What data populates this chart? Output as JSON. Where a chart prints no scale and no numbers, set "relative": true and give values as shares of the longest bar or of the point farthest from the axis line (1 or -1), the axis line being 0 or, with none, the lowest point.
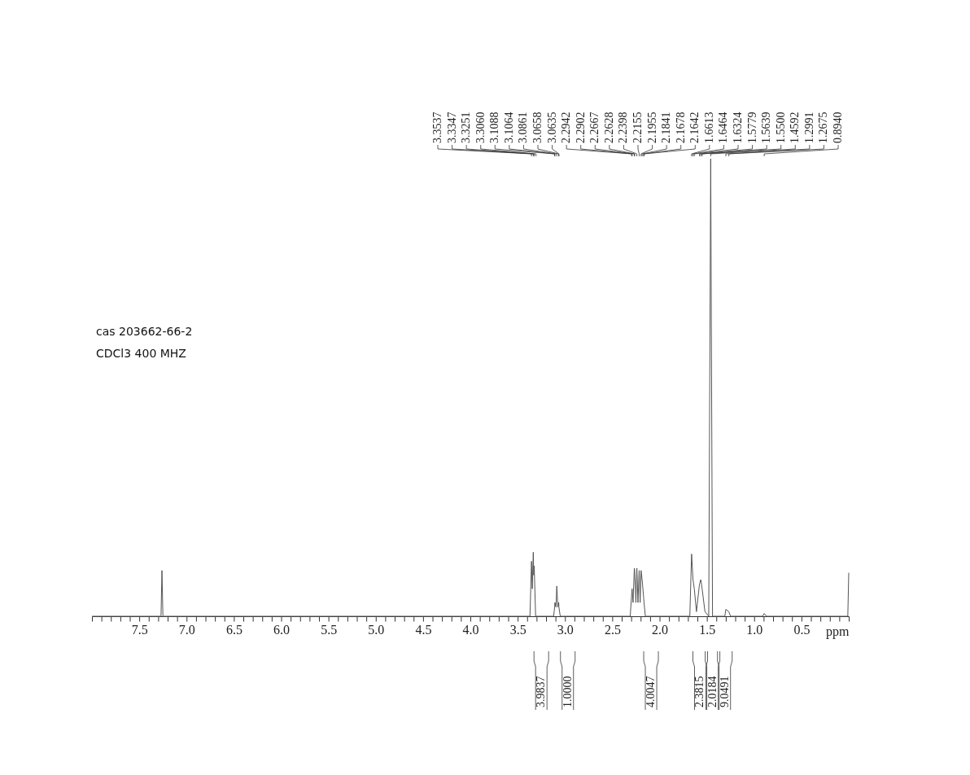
{
  "chart_data": {
    "type": "line",
    "relative": true,
    "xlabel": "ppm",
    "xlim": [
      8.0,
      0.0
    ],
    "xticks": [
      {
        "value": 8.0,
        "label": null
      },
      {
        "value": 7.9,
        "label": null
      },
      {
        "value": 7.8,
        "label": null
      },
      {
        "value": 7.7,
        "label": null
      },
      {
        "value": 7.6,
        "label": null
      },
      {
        "value": 7.5,
        "label": "7.5"
      },
      {
        "value": 7.4,
        "label": null
      },
      {
        "value": 7.3,
        "label": null
      },
      {
        "value": 7.2,
        "label": null
      },
      {
        "value": 7.1,
        "label": null
      },
      {
        "value": 7.0,
        "label": "7.0"
      },
      {
        "value": 6.9,
        "label": null
      },
      {
        "value": 6.8,
        "label": null
      },
      {
        "value": 6.7,
        "label": null
      },
      {
        "value": 6.6,
        "label": null
      },
      {
        "value": 6.5,
        "label": "6.5"
      },
      {
        "value": 6.4,
        "label": null
      },
      {
        "value": 6.3,
        "label": null
      },
      {
        "value": 6.2,
        "label": null
      },
      {
        "value": 6.1,
        "label": null
      },
      {
        "value": 6.0,
        "label": "6.0"
      },
      {
        "value": 5.9,
        "label": null
      },
      {
        "value": 5.8,
        "label": null
      },
      {
        "value": 5.7,
        "label": null
      },
      {
        "value": 5.6,
        "label": null
      },
      {
        "value": 5.5,
        "label": "5.5"
      },
      {
        "value": 5.4,
        "label": null
      },
      {
        "value": 5.3,
        "label": null
      },
      {
        "value": 5.2,
        "label": null
      },
      {
        "value": 5.1,
        "label": null
      },
      {
        "value": 5.0,
        "label": "5.0"
      },
      {
        "value": 4.9,
        "label": null
      },
      {
        "value": 4.8,
        "label": null
      },
      {
        "value": 4.7,
        "label": null
      },
      {
        "value": 4.6,
        "label": null
      },
      {
        "value": 4.5,
        "label": "4.5"
      },
      {
        "value": 4.4,
        "label": null
      },
      {
        "value": 4.3,
        "label": null
      },
      {
        "value": 4.2,
        "label": null
      },
      {
        "value": 4.1,
        "label": null
      },
      {
        "value": 4.0,
        "label": "4.0"
      },
      {
        "value": 3.9,
        "label": null
      },
      {
        "value": 3.8,
        "label": null
      },
      {
        "value": 3.7,
        "label": null
      },
      {
        "value": 3.6,
        "label": null
      },
      {
        "value": 3.5,
        "label": "3.5"
      },
      {
        "value": 3.4,
        "label": null
      },
      {
        "value": 3.3,
        "label": null
      },
      {
        "value": 3.2,
        "label": null
      },
      {
        "value": 3.1,
        "label": null
      },
      {
        "value": 3.0,
        "label": "3.0"
      },
      {
        "value": 2.9,
        "label": null
      },
      {
        "value": 2.8,
        "label": null
      },
      {
        "value": 2.7,
        "label": null
      },
      {
        "value": 2.6,
        "label": null
      },
      {
        "value": 2.5,
        "label": "2.5"
      },
      {
        "value": 2.4,
        "label": null
      },
      {
        "value": 2.3,
        "label": null
      },
      {
        "value": 2.2,
        "label": null
      },
      {
        "value": 2.1,
        "label": null
      },
      {
        "value": 2.0,
        "label": "2.0"
      },
      {
        "value": 1.9,
        "label": null
      },
      {
        "value": 1.8,
        "label": null
      },
      {
        "value": 1.7,
        "label": null
      },
      {
        "value": 1.6,
        "label": null
      },
      {
        "value": 1.5,
        "label": "1.5"
      },
      {
        "value": 1.4,
        "label": null
      },
      {
        "value": 1.3,
        "label": null
      },
      {
        "value": 1.2,
        "label": null
      },
      {
        "value": 1.1,
        "label": null
      },
      {
        "value": 1.0,
        "label": "1.0"
      },
      {
        "value": 0.9,
        "label": null
      },
      {
        "value": 0.8,
        "label": null
      },
      {
        "value": 0.7,
        "label": null
      },
      {
        "value": 0.6,
        "label": null
      },
      {
        "value": 0.5,
        "label": "0.5"
      },
      {
        "value": 0.4,
        "label": null
      },
      {
        "value": 0.3,
        "label": null
      },
      {
        "value": 0.2,
        "label": null
      },
      {
        "value": 0.1,
        "label": null
      },
      {
        "value": 0.0,
        "label": null
      }
    ],
    "series": [
      {
        "color": "#555555",
        "x": [
          8.0,
          7.27,
          7.26,
          7.25,
          3.37,
          3.3537,
          3.345,
          3.3347,
          3.33,
          3.3251,
          3.31,
          3.12,
          3.1088,
          3.1064,
          3.095,
          3.0861,
          3.075,
          3.0658,
          3.0635,
          3.05,
          2.31,
          2.2942,
          2.2902,
          2.28,
          2.2667,
          2.2628,
          2.25,
          2.2398,
          2.228,
          2.2155,
          2.205,
          2.1955,
          2.1841,
          2.1678,
          2.1642,
          2.15,
          1.68,
          1.6613,
          1.6464,
          1.6324,
          1.61,
          1.5779,
          1.5639,
          1.55,
          1.52,
          1.48,
          1.4592,
          1.44,
          1.31,
          1.2991,
          1.2675,
          1.25,
          0.91,
          0.894,
          0.87,
          0.01,
          0.0
        ],
        "values": [
          0,
          0,
          0.1,
          0,
          0,
          0.12,
          0.06,
          0.14,
          0.09,
          0.11,
          0,
          0,
          0.02,
          0.03,
          0.02,
          0.066,
          0.02,
          0.03,
          0.02,
          0,
          0,
          0.05,
          0.06,
          0.03,
          0.105,
          0.1,
          0.03,
          0.105,
          0.03,
          0.1,
          0.03,
          0.1,
          0.08,
          0.04,
          0.03,
          0,
          0,
          0.136,
          0.08,
          0.06,
          0.01,
          0.07,
          0.08,
          0.06,
          0.01,
          0,
          1.0,
          0,
          0,
          0.015,
          0.01,
          0,
          0,
          0.006,
          0,
          0,
          0.095
        ]
      }
    ],
    "annotations": [
      "cas 203662-66-2",
      "CDCl3  400 MHZ",
      {
        "text": "3.3537",
        "x": 3.3537
      },
      {
        "text": "3.3347",
        "x": 3.3347
      },
      {
        "text": "3.3251",
        "x": 3.3251
      },
      {
        "text": "3.3060",
        "x": 3.306
      },
      {
        "text": "3.1088",
        "x": 3.1088
      },
      {
        "text": "3.1064",
        "x": 3.1064
      },
      {
        "text": "3.0861",
        "x": 3.0861
      },
      {
        "text": "3.0658",
        "x": 3.0658
      },
      {
        "text": "3.0635",
        "x": 3.0635
      },
      {
        "text": "2.2942",
        "x": 2.2942
      },
      {
        "text": "2.2902",
        "x": 2.2902
      },
      {
        "text": "2.2667",
        "x": 2.2667
      },
      {
        "text": "2.2628",
        "x": 2.2628
      },
      {
        "text": "2.2398",
        "x": 2.2398
      },
      {
        "text": "2.2155",
        "x": 2.2155
      },
      {
        "text": "2.1955",
        "x": 2.1955
      },
      {
        "text": "2.1841",
        "x": 2.1841
      },
      {
        "text": "2.1678",
        "x": 2.1678
      },
      {
        "text": "2.1642",
        "x": 2.1642
      },
      {
        "text": "1.6613",
        "x": 1.6613
      },
      {
        "text": "1.6464",
        "x": 1.6464
      },
      {
        "text": "1.6324",
        "x": 1.6324
      },
      {
        "text": "1.5779",
        "x": 1.5779
      },
      {
        "text": "1.5639",
        "x": 1.5639
      },
      {
        "text": "1.5500",
        "x": 1.55
      },
      {
        "text": "1.4592",
        "x": 1.4592
      },
      {
        "text": "1.2991",
        "x": 1.2991
      },
      {
        "text": "1.2675",
        "x": 1.2675
      },
      {
        "text": "0.8940",
        "x": 0.894
      },
      "3.9837",
      "1.0000",
      "4.0047",
      "2.3815",
      "2.0184",
      "9.0491"
    ]
  }
}
